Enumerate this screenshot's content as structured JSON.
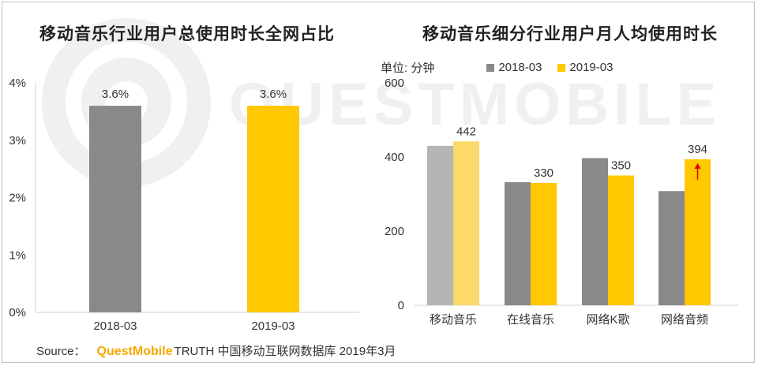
{
  "watermark": {
    "text": "QUESTMOBILE",
    "color": "#f0f0f0"
  },
  "colors": {
    "gray": "#898989",
    "yellow": "#ffc800",
    "light_gray": "#b5b5b5",
    "light_yellow": "#fbd96a",
    "arrow": "#e00000",
    "axis": "#d0d0d0"
  },
  "chart_data": [
    {
      "type": "bar",
      "title": "移动音乐行业用户总使用时长全网占比",
      "categories": [
        "2018-03",
        "2019-03"
      ],
      "values": [
        3.6,
        3.6
      ],
      "value_labels": [
        "3.6%",
        "3.6%"
      ],
      "yticks": [
        "0%",
        "1%",
        "2%",
        "3%",
        "4%"
      ],
      "ylim": [
        0,
        4
      ],
      "grid": false
    },
    {
      "type": "bar",
      "title": "移动音乐细分行业用户月人均使用时长",
      "unit": "单位: 分钟",
      "categories": [
        "移动音乐",
        "在线音乐",
        "网络K歌",
        "网络音频"
      ],
      "series": [
        {
          "name": "2018-03",
          "values": [
            430,
            332,
            397,
            308
          ]
        },
        {
          "name": "2019-03",
          "values": [
            442,
            330,
            350,
            394
          ]
        }
      ],
      "value_labels": [
        "442",
        "330",
        "350",
        "394"
      ],
      "yticks": [
        "0",
        "200",
        "400",
        "600"
      ],
      "ylim": [
        0,
        600
      ],
      "legend": "top",
      "grid": false
    }
  ],
  "source": {
    "label": "Source：",
    "brand": "QuestMobile",
    "rest": "TRUTH 中国移动互联网数据库 2019年3月"
  }
}
